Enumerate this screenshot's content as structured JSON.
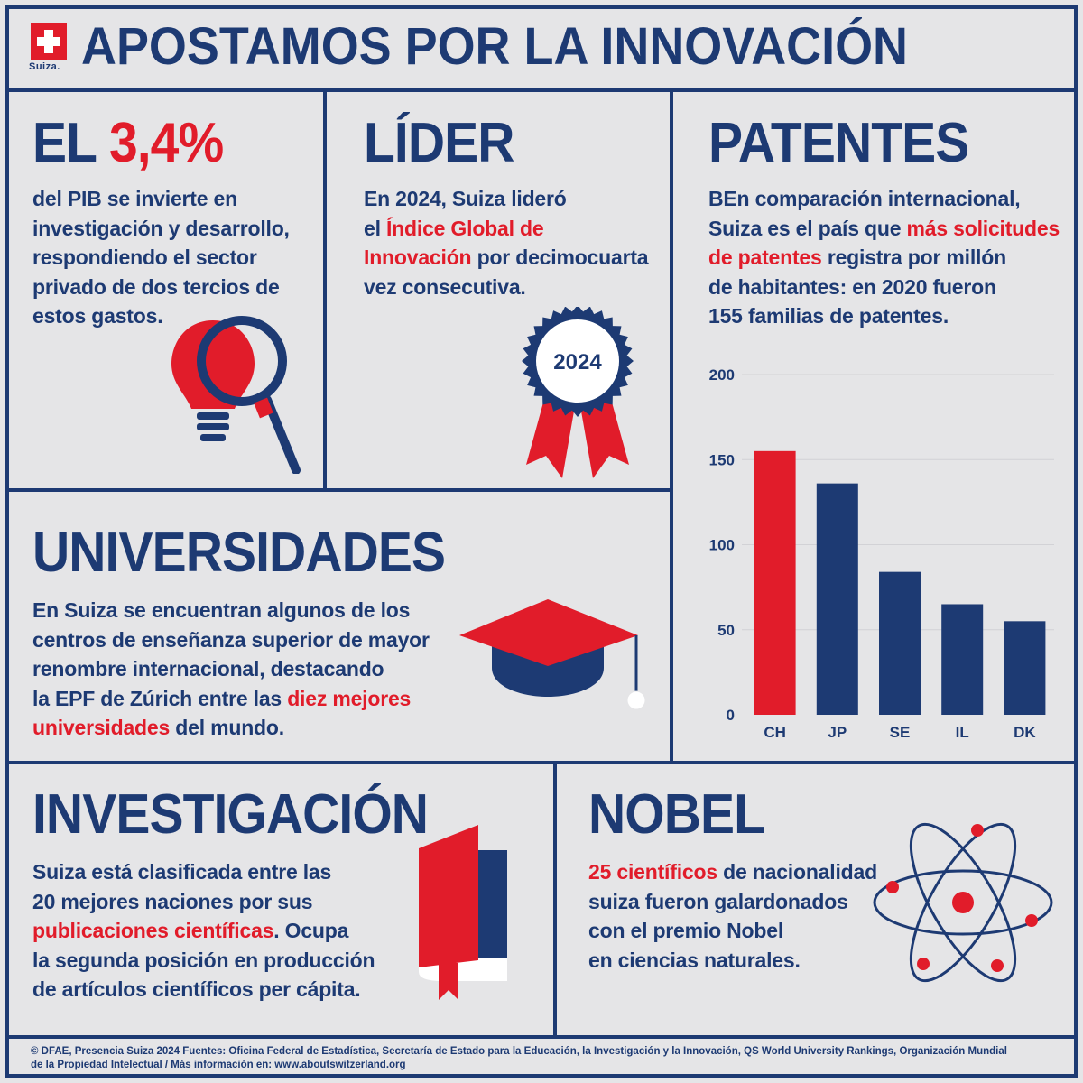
{
  "header": {
    "logo_label": "Suiza.",
    "title": "APOSTAMOS POR LA INNOVACIÓN"
  },
  "pib": {
    "title_prefix": "EL ",
    "title_highlight": "3,4%",
    "lines": [
      "del PIB se invierte en",
      "investigación y desarrollo,",
      "respondiendo el sector",
      "privado de dos tercios de",
      "estos gastos."
    ]
  },
  "lider": {
    "title": "LÍDER",
    "line1": "En 2024, Suiza lideró",
    "line2_pre": "el ",
    "line2_red": "Índice Global de",
    "line3_red": "Innovación",
    "line3_post": " por decimocuarta",
    "line4": "vez consecutiva.",
    "badge_year": "2024"
  },
  "patentes": {
    "title": "PATENTES",
    "line1": "BEn comparación internacional,",
    "line2_pre": "Suiza es el país que ",
    "line2_red": "más solicitudes",
    "line3_red": "de patentes",
    "line3_post": " registra por millón",
    "line4": "de habitantes: en 2020 fueron",
    "line5": "155 familias de patentes."
  },
  "universidades": {
    "title": "UNIVERSIDADES",
    "line1": "En Suiza se encuentran algunos de los",
    "line2": "centros de enseñanza superior de mayor",
    "line3": "renombre internacional, destacando",
    "line4_pre": "la EPF de Zúrich entre las ",
    "line4_red": "diez mejores",
    "line5_red": "universidades",
    "line5_post": " del mundo."
  },
  "investigacion": {
    "title": "INVESTIGACIÓN",
    "line1": "Suiza está clasificada entre las",
    "line2": "20 mejores naciones por sus",
    "line3_red": "publicaciones científicas",
    "line3_post": ". Ocupa",
    "line4": "la segunda posición en producción",
    "line5": "de artículos científicos per cápita."
  },
  "nobel": {
    "title": "NOBEL",
    "line1_red": "25 científicos",
    "line1_post": " de nacionalidad",
    "line2": "suiza fueron galardonados",
    "line3": "con el premio Nobel",
    "line4": "en ciencias naturales."
  },
  "footer": {
    "line1": "© DFAE, Presencia Suiza 2024 Fuentes: Oficina Federal de Estadística, Secretaría de Estado para la Educación, la Investigación y la Innovación, QS World University Rankings, Organización Mundial",
    "line2": "de la Propiedad Intelectual / Más información en: www.aboutswitzerland.org"
  },
  "colors": {
    "navy": "#1d3a73",
    "red": "#e11c2a",
    "background": "#e5e5e7"
  },
  "icons": [
    "swiss-cross-icon",
    "lightbulb-magnifier-icon",
    "rosette-badge-icon",
    "graduation-cap-icon",
    "book-icon",
    "atom-icon"
  ],
  "chart_data": {
    "type": "bar",
    "categories": [
      "CH",
      "JP",
      "SE",
      "IL",
      "DK"
    ],
    "values": [
      155,
      136,
      84,
      65,
      55
    ],
    "highlight_category": "CH",
    "ylim": [
      0,
      200
    ],
    "yticks": [
      0,
      50,
      100,
      150,
      200
    ],
    "grid": true
  }
}
